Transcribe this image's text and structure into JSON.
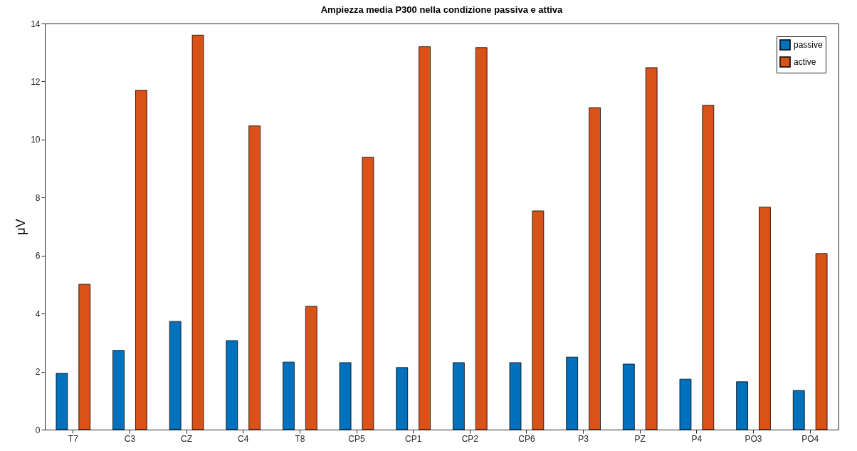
{
  "chart_data": {
    "type": "bar",
    "title": "Ampiezza media P300 nella condizione passiva e attiva",
    "ylabel": "μV",
    "categories": [
      "T7",
      "C3",
      "CZ",
      "C4",
      "T8",
      "CP5",
      "CP1",
      "CP2",
      "CP6",
      "P3",
      "PZ",
      "P4",
      "PO3",
      "PO4"
    ],
    "series": [
      {
        "name": "passive",
        "color": "#0072bd",
        "values": [
          1.94,
          2.73,
          3.73,
          3.07,
          2.33,
          2.31,
          2.14,
          2.31,
          2.31,
          2.5,
          2.26,
          1.74,
          1.65,
          1.35
        ]
      },
      {
        "name": "active",
        "color": "#d95319",
        "values": [
          5.01,
          11.7,
          13.6,
          10.47,
          4.25,
          9.39,
          13.2,
          13.17,
          7.54,
          11.1,
          12.48,
          11.18,
          7.67,
          6.07
        ]
      }
    ],
    "ylim": [
      0,
      14
    ],
    "yticks": [
      0,
      2,
      4,
      6,
      8,
      10,
      12,
      14
    ],
    "grid": false,
    "legend": "top right"
  }
}
